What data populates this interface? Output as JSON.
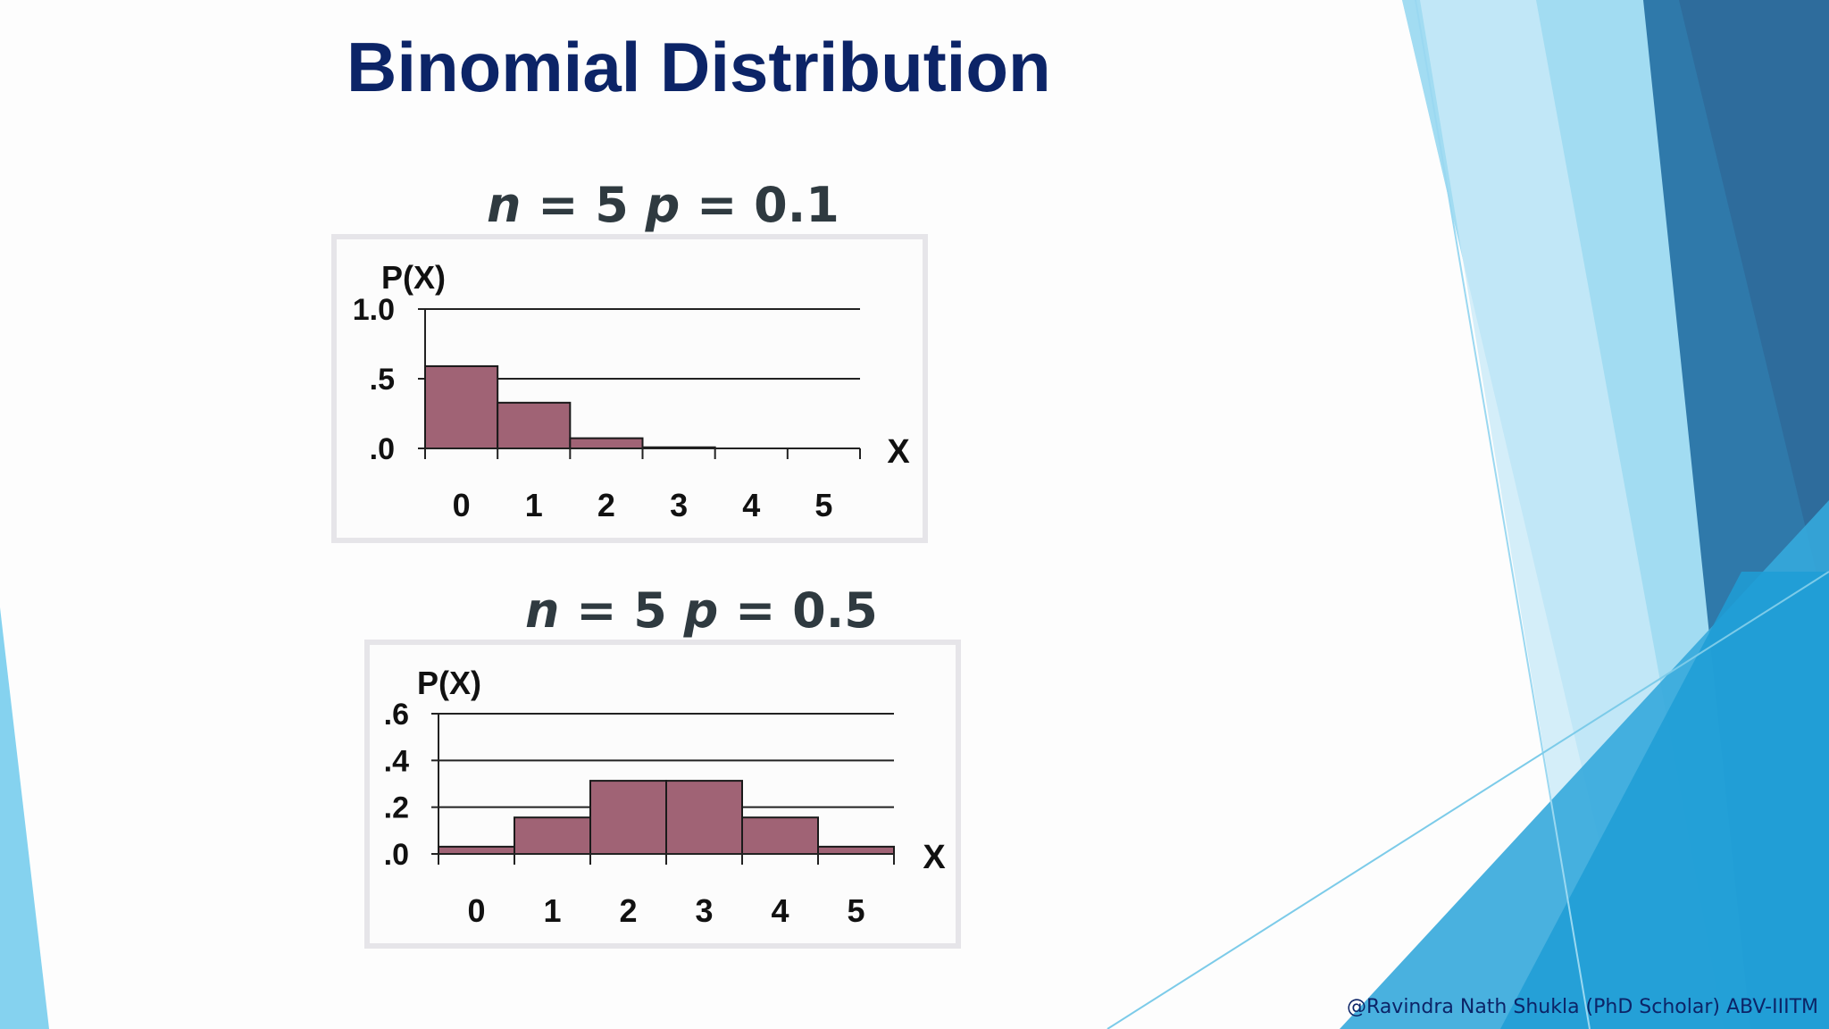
{
  "slide": {
    "title": "Binomial Distribution",
    "footer": "@Ravindra Nath  Shukla (PhD Scholar) ABV-IIITM"
  },
  "colors": {
    "title": "#0c2467",
    "bar_fill": "#a06375",
    "parameter_text": "#2f3a40",
    "accent_blue": "#35a9dc"
  },
  "charts": [
    {
      "heading": {
        "n_sym": "n",
        "n_rest": " = 5  ",
        "p_sym": "p",
        "p_rest": " = 0.1"
      },
      "ylabel": "P(X)",
      "xlabel": "X",
      "yticks": [
        "1.0",
        ".5",
        ".0"
      ]
    },
    {
      "heading": {
        "n_sym": "n",
        "n_rest": " = 5  ",
        "p_sym": "p",
        "p_rest": " = 0.5"
      },
      "ylabel": "P(X)",
      "xlabel": "X",
      "yticks": [
        ".6",
        ".4",
        ".2",
        ".0"
      ]
    }
  ],
  "chart_data": [
    {
      "type": "bar",
      "categories": [
        "0",
        "1",
        "2",
        "3",
        "4",
        "5"
      ],
      "values": [
        0.59,
        0.328,
        0.073,
        0.008,
        0.0,
        0.0
      ],
      "xlabel": "X",
      "ylabel": "P(X)",
      "ylim": [
        0,
        1.0
      ],
      "yticks": [
        0,
        0.5,
        1.0
      ],
      "grid": true
    },
    {
      "type": "bar",
      "categories": [
        "0",
        "1",
        "2",
        "3",
        "4",
        "5"
      ],
      "values": [
        0.031,
        0.156,
        0.313,
        0.313,
        0.156,
        0.031
      ],
      "xlabel": "X",
      "ylabel": "P(X)",
      "ylim": [
        0,
        0.6
      ],
      "yticks": [
        0,
        0.2,
        0.4,
        0.6
      ],
      "grid": true
    }
  ]
}
